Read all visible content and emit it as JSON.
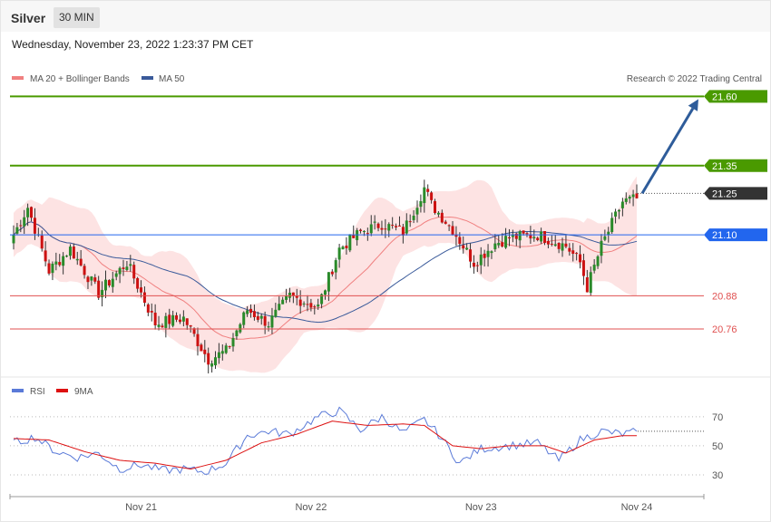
{
  "header": {
    "instrument": "Silver",
    "timeframe": "30 MIN",
    "timestamp": "Wednesday, November 23, 2022 1:23:37 PM CET"
  },
  "legend": {
    "ma20_label": "MA 20 + Bollinger Bands",
    "ma50_label": "MA 50",
    "credit": "Research © 2022 Trading Central",
    "rsi_label": "RSI",
    "rsi_ma_label": "9MA"
  },
  "colors": {
    "resistance": "#4a9a00",
    "current": "#333333",
    "pivot": "#2266ee",
    "support": "#e05050",
    "ma20": "#f08080",
    "ma50": "#3a5a9a",
    "bollinger_fill": "#fde3e3",
    "bull_candle": "#2a8a2a",
    "bear_candle": "#cc1111",
    "rsi": "#5a7ad8",
    "rsi_ma": "#dd1111",
    "arrow": "#2e5c9a"
  },
  "chart_data": [
    {
      "type": "candlestick",
      "panel": "price",
      "y_range": [
        20.59,
        21.67
      ],
      "x_labels": [
        "Nov 21",
        "Nov 22",
        "Nov 23",
        "Nov 24"
      ],
      "levels": [
        {
          "value": 21.6,
          "label": "21.60",
          "kind": "resistance"
        },
        {
          "value": 21.35,
          "label": "21.35",
          "kind": "resistance"
        },
        {
          "value": 21.25,
          "label": "21.25",
          "kind": "current"
        },
        {
          "value": 21.1,
          "label": "21.10",
          "kind": "pivot"
        },
        {
          "value": 20.88,
          "label": "20.88",
          "kind": "support"
        },
        {
          "value": 20.76,
          "label": "20.76",
          "kind": "support"
        }
      ],
      "forecast_arrow": {
        "from": 21.25,
        "to": 21.6
      },
      "close_anchors": [
        [
          0,
          21.1
        ],
        [
          4,
          21.2
        ],
        [
          10,
          20.97
        ],
        [
          16,
          21.05
        ],
        [
          24,
          20.89
        ],
        [
          32,
          21.0
        ],
        [
          40,
          20.78
        ],
        [
          48,
          20.8
        ],
        [
          55,
          20.65
        ],
        [
          60,
          20.68
        ],
        [
          66,
          20.83
        ],
        [
          72,
          20.78
        ],
        [
          78,
          20.88
        ],
        [
          86,
          20.84
        ],
        [
          92,
          21.05
        ],
        [
          98,
          21.11
        ],
        [
          104,
          21.14
        ],
        [
          110,
          21.11
        ],
        [
          116,
          21.27
        ],
        [
          118,
          21.21
        ],
        [
          124,
          21.12
        ],
        [
          130,
          21.0
        ],
        [
          136,
          21.07
        ],
        [
          140,
          21.09
        ],
        [
          148,
          21.1
        ],
        [
          156,
          21.06
        ],
        [
          160,
          21.0
        ],
        [
          162,
          20.91
        ],
        [
          166,
          21.06
        ],
        [
          172,
          21.22
        ],
        [
          176,
          21.23
        ]
      ]
    },
    {
      "type": "line",
      "panel": "rsi",
      "y_range": [
        20,
        78
      ],
      "ticks": [
        30,
        50,
        70
      ],
      "series": [
        {
          "name": "RSI",
          "points": [
            [
              0,
              52
            ],
            [
              6,
              56
            ],
            [
              12,
              46
            ],
            [
              18,
              42
            ],
            [
              24,
              45
            ],
            [
              30,
              34
            ],
            [
              36,
              37
            ],
            [
              42,
              33
            ],
            [
              48,
              34
            ],
            [
              54,
              32
            ],
            [
              60,
              38
            ],
            [
              66,
              57
            ],
            [
              72,
              60
            ],
            [
              78,
              58
            ],
            [
              86,
              70
            ],
            [
              92,
              74
            ],
            [
              98,
              61
            ],
            [
              104,
              70
            ],
            [
              110,
              59
            ],
            [
              116,
              68
            ],
            [
              120,
              58
            ],
            [
              126,
              38
            ],
            [
              132,
              48
            ],
            [
              140,
              50
            ],
            [
              148,
              52
            ],
            [
              154,
              40
            ],
            [
              160,
              54
            ],
            [
              166,
              60
            ],
            [
              172,
              58
            ],
            [
              176,
              60
            ]
          ]
        },
        {
          "name": "9MA",
          "points": [
            [
              0,
              55
            ],
            [
              10,
              54
            ],
            [
              20,
              46
            ],
            [
              30,
              40
            ],
            [
              40,
              38
            ],
            [
              50,
              34
            ],
            [
              60,
              40
            ],
            [
              70,
              52
            ],
            [
              80,
              58
            ],
            [
              90,
              67
            ],
            [
              100,
              64
            ],
            [
              110,
              65
            ],
            [
              116,
              64
            ],
            [
              124,
              50
            ],
            [
              132,
              48
            ],
            [
              140,
              50
            ],
            [
              150,
              50
            ],
            [
              156,
              45
            ],
            [
              164,
              54
            ],
            [
              172,
              57
            ],
            [
              176,
              57
            ]
          ]
        }
      ]
    }
  ]
}
